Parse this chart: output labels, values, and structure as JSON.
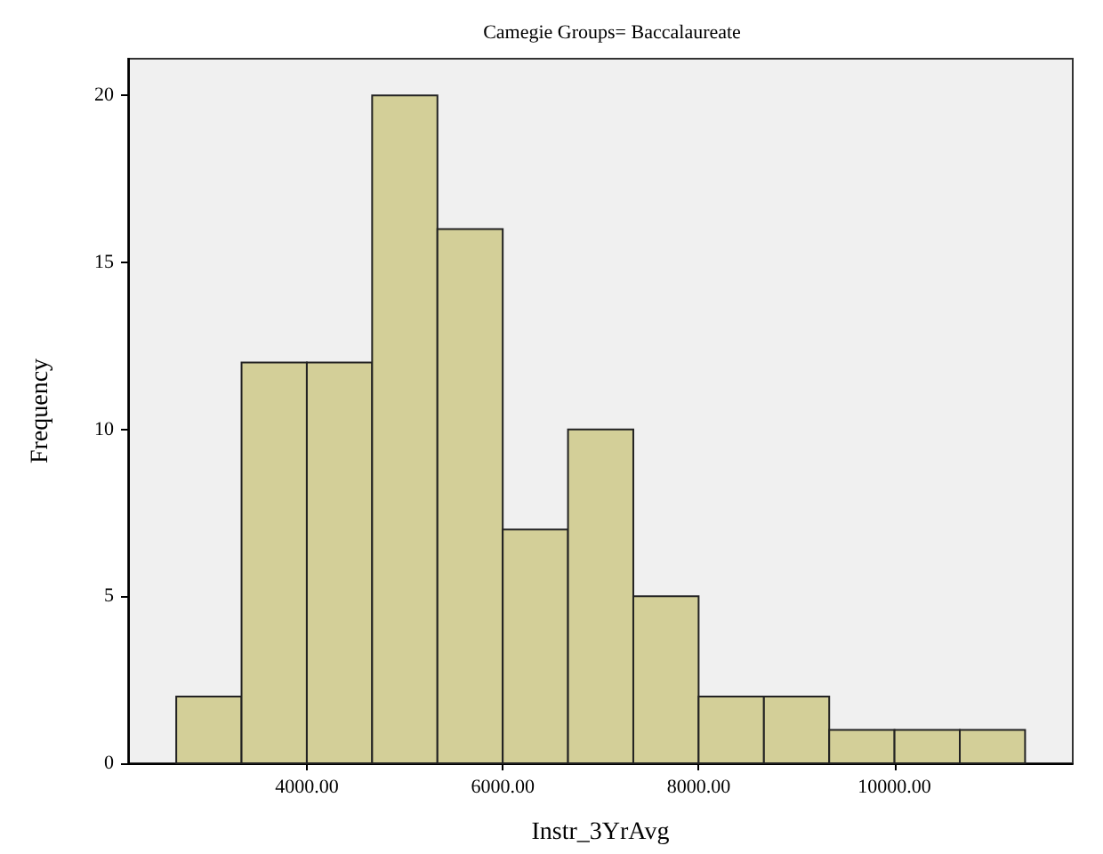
{
  "chart_data": {
    "type": "histogram",
    "title": "Camegie Groups= Baccalaureate",
    "xlabel": "Instr_3YrAvg",
    "ylabel": "Frequency",
    "bins": [
      2666.67,
      3333.33,
      4000,
      4666.67,
      5333.33,
      6000,
      6666.67,
      7333.33,
      8000,
      8666.67,
      9333.33,
      10000,
      10666.67,
      11333.33
    ],
    "values": [
      2,
      12,
      12,
      20,
      16,
      7,
      10,
      5,
      2,
      2,
      1,
      1,
      1
    ],
    "color": "#d3cf98",
    "xlim": [
      2175,
      11820
    ],
    "ylim": [
      0,
      21.1
    ],
    "xticks": [
      {
        "value": 4000,
        "label": "4000.00"
      },
      {
        "value": 6000,
        "label": "6000.00"
      },
      {
        "value": 8000,
        "label": "8000.00"
      },
      {
        "value": 10000,
        "label": "10000.00"
      }
    ],
    "yticks": [
      0,
      5,
      10,
      15,
      20
    ],
    "grid": false
  }
}
